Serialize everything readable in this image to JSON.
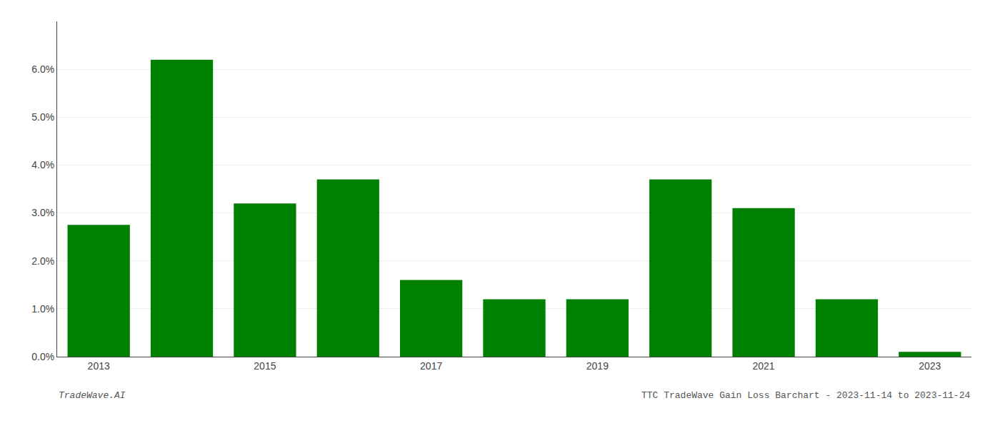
{
  "chart_data": {
    "type": "bar",
    "categories": [
      "2013",
      null,
      "2015",
      null,
      "2017",
      null,
      "2019",
      null,
      "2021",
      null,
      "2023"
    ],
    "values": [
      0.0275,
      0.062,
      0.032,
      0.037,
      0.016,
      0.012,
      0.012,
      0.037,
      0.031,
      0.012,
      0.001
    ],
    "color": "#008000",
    "ylim": [
      0,
      0.07
    ],
    "yticks": [
      {
        "value": 0.0,
        "label": "0.0%"
      },
      {
        "value": 0.01,
        "label": "1.0%"
      },
      {
        "value": 0.02,
        "label": "2.0%"
      },
      {
        "value": 0.03,
        "label": "3.0%"
      },
      {
        "value": 0.04,
        "label": "4.0%"
      },
      {
        "value": 0.05,
        "label": "5.0%"
      },
      {
        "value": 0.06,
        "label": "6.0%"
      }
    ],
    "grid": true,
    "annotations": [
      "TradeWave.AI",
      "TTC TradeWave Gain Loss Barchart - 2023-11-14 to 2023-11-24"
    ]
  }
}
